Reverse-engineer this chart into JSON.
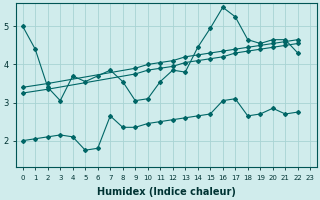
{
  "background_color": "#d0ecec",
  "grid_color": "#a8d4d4",
  "line_color": "#006666",
  "xlabel": "Humidex (Indice chaleur)",
  "xlim": [
    -0.5,
    23.5
  ],
  "ylim": [
    1.3,
    5.6
  ],
  "yticks": [
    2,
    3,
    4,
    5
  ],
  "xticks": [
    0,
    1,
    2,
    3,
    4,
    5,
    6,
    7,
    8,
    9,
    10,
    11,
    12,
    13,
    14,
    15,
    16,
    17,
    18,
    19,
    20,
    21,
    22,
    23
  ],
  "series1_x": [
    0,
    1,
    2,
    3,
    4,
    5,
    6,
    7,
    8,
    9,
    10,
    11,
    12,
    13,
    14,
    15,
    16,
    17,
    18,
    19,
    20,
    21,
    22
  ],
  "series1_y": [
    5.0,
    4.4,
    3.4,
    3.05,
    3.7,
    3.55,
    3.7,
    3.85,
    3.55,
    3.05,
    3.1,
    3.55,
    3.85,
    3.8,
    4.45,
    4.95,
    5.5,
    5.25,
    4.65,
    4.55,
    4.65,
    4.65,
    4.3
  ],
  "series2_x": [
    0,
    2,
    9,
    10,
    11,
    12,
    13,
    14,
    15,
    16,
    17,
    18,
    19,
    20,
    21,
    22
  ],
  "series2_y": [
    3.4,
    3.5,
    3.9,
    4.0,
    4.05,
    4.1,
    4.2,
    4.25,
    4.3,
    4.35,
    4.4,
    4.45,
    4.5,
    4.55,
    4.6,
    4.65
  ],
  "series3_x": [
    0,
    2,
    9,
    10,
    11,
    12,
    13,
    14,
    15,
    16,
    17,
    18,
    19,
    20,
    21,
    22
  ],
  "series3_y": [
    3.25,
    3.35,
    3.75,
    3.85,
    3.9,
    3.95,
    4.05,
    4.1,
    4.15,
    4.2,
    4.3,
    4.35,
    4.4,
    4.45,
    4.5,
    4.55
  ],
  "series4_x": [
    0,
    1,
    2,
    3,
    4,
    5,
    6,
    7,
    8,
    9,
    10,
    11,
    12,
    13,
    14,
    15,
    16,
    17,
    18,
    19,
    20,
    21,
    22
  ],
  "series4_y": [
    2.0,
    2.05,
    2.1,
    2.15,
    2.1,
    1.75,
    1.8,
    2.65,
    2.35,
    2.35,
    2.45,
    2.5,
    2.55,
    2.6,
    2.65,
    2.7,
    3.05,
    3.1,
    2.65,
    2.7,
    2.85,
    2.7,
    2.75
  ]
}
